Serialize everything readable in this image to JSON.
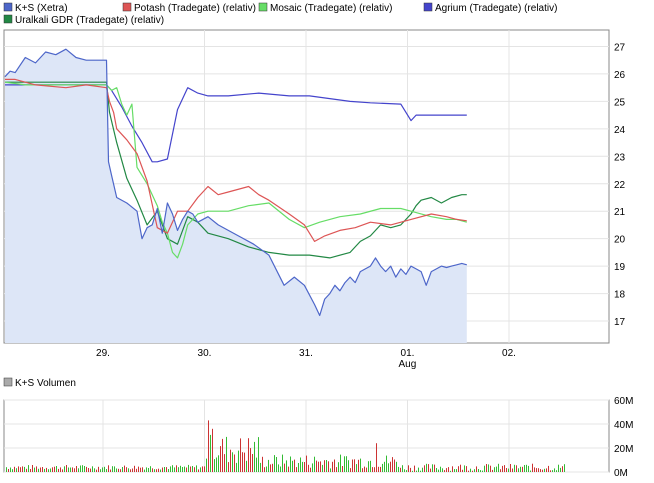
{
  "chart_data": [
    {
      "type": "line",
      "x_ticks": [
        "29.",
        "30.",
        "31.",
        "01.",
        "02."
      ],
      "x_sub_label": "Aug",
      "y_ticks": [
        17,
        18,
        19,
        20,
        21,
        22,
        23,
        24,
        25,
        26,
        27
      ],
      "ylim": [
        16.2,
        27.6
      ],
      "grid": true,
      "legend_position": "top-left",
      "series": [
        {
          "name": "K+S (Xetra)",
          "color": "#4d66c9",
          "fill": "#dde6f7",
          "points": [
            [
              0,
              25.9
            ],
            [
              0.05,
              26.1
            ],
            [
              0.1,
              26.05
            ],
            [
              0.2,
              26.6
            ],
            [
              0.3,
              26.4
            ],
            [
              0.4,
              26.8
            ],
            [
              0.5,
              26.7
            ],
            [
              0.6,
              26.9
            ],
            [
              0.7,
              26.6
            ],
            [
              0.8,
              26.5
            ],
            [
              1.0,
              26.5
            ],
            [
              1.02,
              22.8
            ],
            [
              1.05,
              22.3
            ],
            [
              1.1,
              21.5
            ],
            [
              1.2,
              21.3
            ],
            [
              1.3,
              21.0
            ],
            [
              1.35,
              20.0
            ],
            [
              1.4,
              20.4
            ],
            [
              1.45,
              20.5
            ],
            [
              1.5,
              21.1
            ],
            [
              1.55,
              20.2
            ],
            [
              1.6,
              21.3
            ],
            [
              1.65,
              20.9
            ],
            [
              1.7,
              20.3
            ],
            [
              1.75,
              20.7
            ],
            [
              1.8,
              21.0
            ],
            [
              1.85,
              20.9
            ],
            [
              1.9,
              20.6
            ],
            [
              2.0,
              20.8
            ],
            [
              2.1,
              20.5
            ],
            [
              2.2,
              20.3
            ],
            [
              2.3,
              20.1
            ],
            [
              2.45,
              19.8
            ],
            [
              2.6,
              19.4
            ],
            [
              2.75,
              18.3
            ],
            [
              2.85,
              18.6
            ],
            [
              2.95,
              18.3
            ],
            [
              3.05,
              17.6
            ],
            [
              3.1,
              17.2
            ],
            [
              3.15,
              17.8
            ],
            [
              3.2,
              18.0
            ],
            [
              3.25,
              18.3
            ],
            [
              3.3,
              18.1
            ],
            [
              3.35,
              18.4
            ],
            [
              3.4,
              18.6
            ],
            [
              3.45,
              18.4
            ],
            [
              3.5,
              18.8
            ],
            [
              3.55,
              18.9
            ],
            [
              3.6,
              19.0
            ],
            [
              3.65,
              19.3
            ],
            [
              3.7,
              19.0
            ],
            [
              3.75,
              18.8
            ],
            [
              3.8,
              19.0
            ],
            [
              3.85,
              18.6
            ],
            [
              3.9,
              18.9
            ],
            [
              3.95,
              18.7
            ],
            [
              4.0,
              19.0
            ],
            [
              4.05,
              18.9
            ],
            [
              4.1,
              18.8
            ],
            [
              4.15,
              18.3
            ],
            [
              4.2,
              18.8
            ],
            [
              4.25,
              18.9
            ],
            [
              4.3,
              19.0
            ],
            [
              4.35,
              18.95
            ],
            [
              4.4,
              19.0
            ],
            [
              4.45,
              19.05
            ],
            [
              4.5,
              19.1
            ],
            [
              4.55,
              19.05
            ]
          ]
        },
        {
          "name": "Potash (Tradegate) (relativ)",
          "color": "#dd5555",
          "points": [
            [
              0,
              25.8
            ],
            [
              0.1,
              25.8
            ],
            [
              0.3,
              25.6
            ],
            [
              0.6,
              25.5
            ],
            [
              0.8,
              25.6
            ],
            [
              1.0,
              25.5
            ],
            [
              1.03,
              25.0
            ],
            [
              1.07,
              24.6
            ],
            [
              1.1,
              24.0
            ],
            [
              1.2,
              23.6
            ],
            [
              1.3,
              23.1
            ],
            [
              1.4,
              22.1
            ],
            [
              1.5,
              20.4
            ],
            [
              1.6,
              20.2
            ],
            [
              1.7,
              21.0
            ],
            [
              1.8,
              21.0
            ],
            [
              1.9,
              21.5
            ],
            [
              2.0,
              21.9
            ],
            [
              2.1,
              21.6
            ],
            [
              2.2,
              21.7
            ],
            [
              2.4,
              21.9
            ],
            [
              2.5,
              21.6
            ],
            [
              2.6,
              21.4
            ],
            [
              2.8,
              20.9
            ],
            [
              2.95,
              20.5
            ],
            [
              3.05,
              19.9
            ],
            [
              3.15,
              20.1
            ],
            [
              3.3,
              20.3
            ],
            [
              3.45,
              20.4
            ],
            [
              3.6,
              20.6
            ],
            [
              3.8,
              20.5
            ],
            [
              4.0,
              20.7
            ],
            [
              4.2,
              20.9
            ],
            [
              4.35,
              20.8
            ],
            [
              4.45,
              20.7
            ],
            [
              4.55,
              20.65
            ]
          ]
        },
        {
          "name": "Mosaic (Tradegate) (relativ)",
          "color": "#66dd66",
          "points": [
            [
              0,
              25.7
            ],
            [
              0.2,
              25.6
            ],
            [
              0.5,
              25.6
            ],
            [
              0.8,
              25.6
            ],
            [
              1.0,
              25.6
            ],
            [
              1.05,
              25.4
            ],
            [
              1.1,
              25.5
            ],
            [
              1.15,
              24.9
            ],
            [
              1.2,
              24.5
            ],
            [
              1.25,
              24.9
            ],
            [
              1.3,
              22.6
            ],
            [
              1.4,
              22.0
            ],
            [
              1.5,
              21.2
            ],
            [
              1.55,
              20.6
            ],
            [
              1.6,
              20.2
            ],
            [
              1.65,
              19.5
            ],
            [
              1.7,
              19.3
            ],
            [
              1.75,
              19.8
            ],
            [
              1.8,
              20.5
            ],
            [
              1.9,
              20.9
            ],
            [
              2.0,
              21.0
            ],
            [
              2.2,
              21.0
            ],
            [
              2.4,
              21.2
            ],
            [
              2.6,
              21.3
            ],
            [
              2.8,
              20.7
            ],
            [
              2.95,
              20.4
            ],
            [
              3.1,
              20.6
            ],
            [
              3.3,
              20.8
            ],
            [
              3.5,
              20.9
            ],
            [
              3.7,
              21.1
            ],
            [
              3.9,
              21.1
            ],
            [
              4.0,
              21.0
            ],
            [
              4.2,
              20.8
            ],
            [
              4.35,
              20.7
            ],
            [
              4.45,
              20.7
            ],
            [
              4.55,
              20.6
            ]
          ]
        },
        {
          "name": "Agrium (Tradegate) (relativ)",
          "color": "#4444cc",
          "points": [
            [
              0,
              25.6
            ],
            [
              0.2,
              25.6
            ],
            [
              0.5,
              25.6
            ],
            [
              0.8,
              25.6
            ],
            [
              1.0,
              25.6
            ],
            [
              1.05,
              25.4
            ],
            [
              1.15,
              24.8
            ],
            [
              1.25,
              24.1
            ],
            [
              1.35,
              23.5
            ],
            [
              1.45,
              22.8
            ],
            [
              1.5,
              22.8
            ],
            [
              1.6,
              22.9
            ],
            [
              1.7,
              24.7
            ],
            [
              1.8,
              25.5
            ],
            [
              1.9,
              25.3
            ],
            [
              2.0,
              25.2
            ],
            [
              2.2,
              25.2
            ],
            [
              2.5,
              25.3
            ],
            [
              2.8,
              25.2
            ],
            [
              3.0,
              25.2
            ],
            [
              3.2,
              25.1
            ],
            [
              3.4,
              25.0
            ],
            [
              3.6,
              24.95
            ],
            [
              3.9,
              24.9
            ],
            [
              4.0,
              24.3
            ],
            [
              4.05,
              24.5
            ],
            [
              4.2,
              24.5
            ],
            [
              4.4,
              24.5
            ],
            [
              4.55,
              24.5
            ]
          ]
        },
        {
          "name": "Uralkali GDR (Tradegate) (relativ)",
          "color": "#228844",
          "points": [
            [
              0,
              25.7
            ],
            [
              0.2,
              25.7
            ],
            [
              0.5,
              25.7
            ],
            [
              0.8,
              25.7
            ],
            [
              1.0,
              25.7
            ],
            [
              1.03,
              24.6
            ],
            [
              1.1,
              23.5
            ],
            [
              1.2,
              22.2
            ],
            [
              1.3,
              21.4
            ],
            [
              1.4,
              20.5
            ],
            [
              1.5,
              21.0
            ],
            [
              1.6,
              20.0
            ],
            [
              1.7,
              19.8
            ],
            [
              1.8,
              20.8
            ],
            [
              1.9,
              20.6
            ],
            [
              2.0,
              20.2
            ],
            [
              2.2,
              20.0
            ],
            [
              2.4,
              19.7
            ],
            [
              2.6,
              19.5
            ],
            [
              2.8,
              19.4
            ],
            [
              3.0,
              19.4
            ],
            [
              3.2,
              19.3
            ],
            [
              3.4,
              19.5
            ],
            [
              3.5,
              19.9
            ],
            [
              3.6,
              20.1
            ],
            [
              3.7,
              20.5
            ],
            [
              3.8,
              20.4
            ],
            [
              3.9,
              20.5
            ],
            [
              4.0,
              20.9
            ],
            [
              4.05,
              21.2
            ],
            [
              4.1,
              21.4
            ],
            [
              4.2,
              21.5
            ],
            [
              4.3,
              21.3
            ],
            [
              4.4,
              21.5
            ],
            [
              4.5,
              21.6
            ],
            [
              4.55,
              21.6
            ]
          ]
        }
      ]
    },
    {
      "type": "bar",
      "legend": "K+S Volumen",
      "y_ticks": [
        "0M",
        "20M",
        "40M",
        "60M"
      ],
      "ylim": [
        0,
        60
      ],
      "grid": true,
      "note": "volume bars in millions; green = up, red = down",
      "up_color": "#33bb33",
      "down_color": "#cc3333"
    }
  ]
}
